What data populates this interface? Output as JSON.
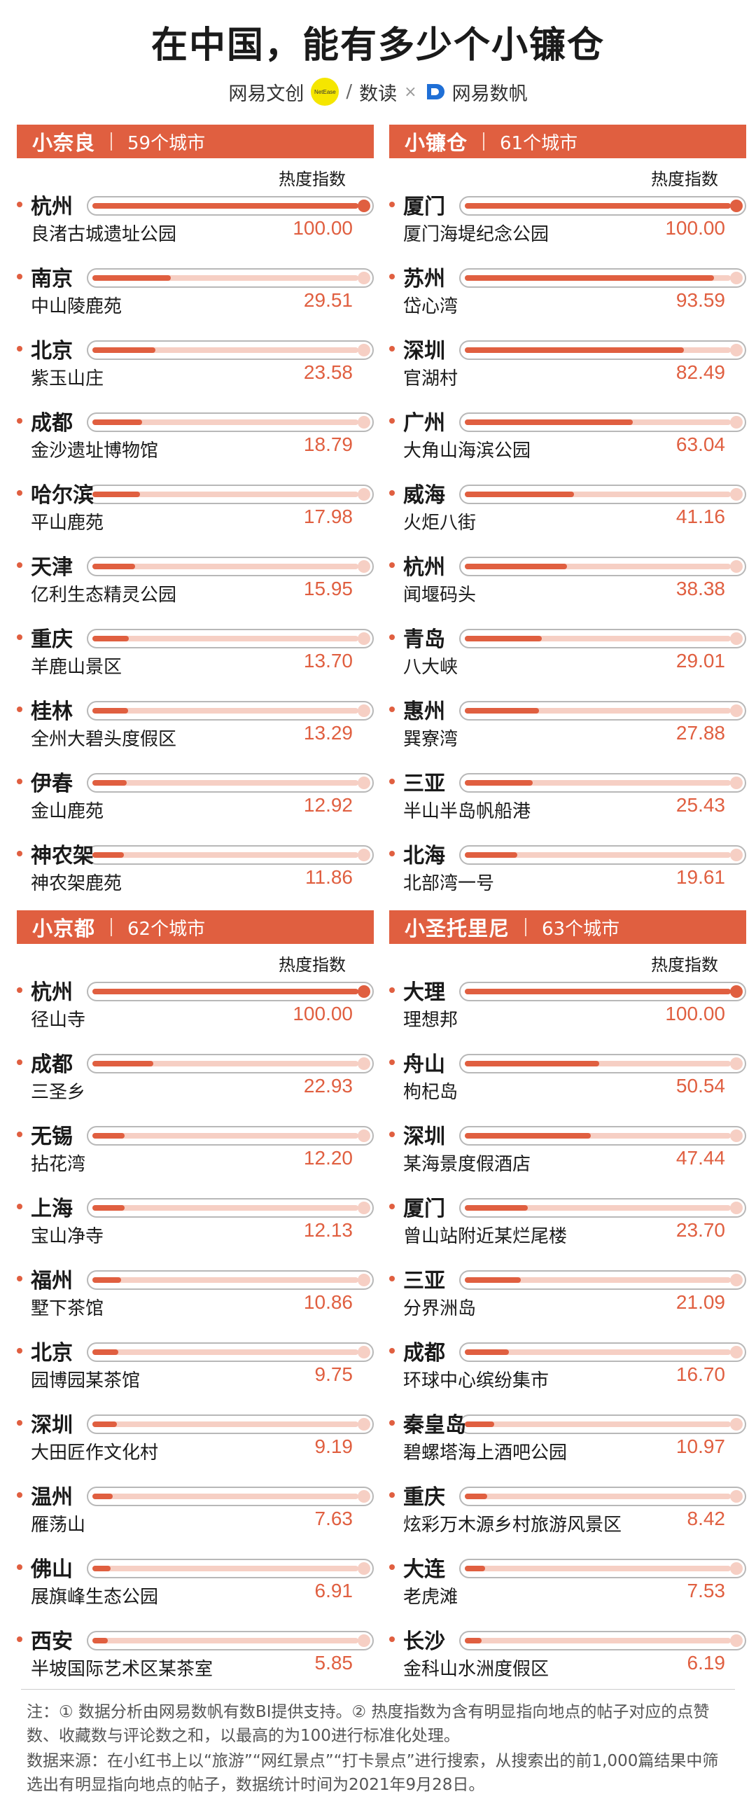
{
  "title": "在中国，能有多少个小镰仓",
  "logos": {
    "wenchuang": "网易文创",
    "badge": "NetEase",
    "slash": "/",
    "shudu": "数读",
    "times": "×",
    "shufan": "网易数帆"
  },
  "hot_label": "热度指数",
  "colors": {
    "accent": "#e05f40",
    "track": "#f6cfc4"
  },
  "panels": [
    {
      "name": "小奈良",
      "count": "59个城市",
      "entries": [
        {
          "city": "杭州",
          "place": "良渚古城遗址公园",
          "value": "100.00"
        },
        {
          "city": "南京",
          "place": "中山陵鹿苑",
          "value": "29.51"
        },
        {
          "city": "北京",
          "place": "紫玉山庄",
          "value": "23.58"
        },
        {
          "city": "成都",
          "place": "金沙遗址博物馆",
          "value": "18.79"
        },
        {
          "city": "哈尔滨",
          "place": "平山鹿苑",
          "value": "17.98"
        },
        {
          "city": "天津",
          "place": "亿利生态精灵公园",
          "value": "15.95"
        },
        {
          "city": "重庆",
          "place": "羊鹿山景区",
          "value": "13.70"
        },
        {
          "city": "桂林",
          "place": "全州大碧头度假区",
          "value": "13.29"
        },
        {
          "city": "伊春",
          "place": "金山鹿苑",
          "value": "12.92"
        },
        {
          "city": "神农架",
          "place": "神农架鹿苑",
          "value": "11.86"
        }
      ]
    },
    {
      "name": "小镰仓",
      "count": "61个城市",
      "entries": [
        {
          "city": "厦门",
          "place": "厦门海堤纪念公园",
          "value": "100.00"
        },
        {
          "city": "苏州",
          "place": "岱心湾",
          "value": "93.59"
        },
        {
          "city": "深圳",
          "place": "官湖村",
          "value": "82.49"
        },
        {
          "city": "广州",
          "place": "大角山海滨公园",
          "value": "63.04"
        },
        {
          "city": "威海",
          "place": "火炬八街",
          "value": "41.16"
        },
        {
          "city": "杭州",
          "place": "闻堰码头",
          "value": "38.38"
        },
        {
          "city": "青岛",
          "place": "八大峡",
          "value": "29.01"
        },
        {
          "city": "惠州",
          "place": "巽寮湾",
          "value": "27.88"
        },
        {
          "city": "三亚",
          "place": "半山半岛帆船港",
          "value": "25.43"
        },
        {
          "city": "北海",
          "place": "北部湾一号",
          "value": "19.61"
        }
      ]
    },
    {
      "name": "小京都",
      "count": "62个城市",
      "entries": [
        {
          "city": "杭州",
          "place": "径山寺",
          "value": "100.00"
        },
        {
          "city": "成都",
          "place": "三圣乡",
          "value": "22.93"
        },
        {
          "city": "无锡",
          "place": "拈花湾",
          "value": "12.20"
        },
        {
          "city": "上海",
          "place": "宝山净寺",
          "value": "12.13"
        },
        {
          "city": "福州",
          "place": "墅下茶馆",
          "value": "10.86"
        },
        {
          "city": "北京",
          "place": "园博园某茶馆",
          "value": "9.75"
        },
        {
          "city": "深圳",
          "place": "大田匠作文化村",
          "value": "9.19"
        },
        {
          "city": "温州",
          "place": "雁荡山",
          "value": "7.63"
        },
        {
          "city": "佛山",
          "place": "展旗峰生态公园",
          "value": "6.91"
        },
        {
          "city": "西安",
          "place": "半坡国际艺术区某茶室",
          "value": "5.85"
        }
      ]
    },
    {
      "name": "小圣托里尼",
      "count": "63个城市",
      "entries": [
        {
          "city": "大理",
          "place": "理想邦",
          "value": "100.00"
        },
        {
          "city": "舟山",
          "place": "枸杞岛",
          "value": "50.54"
        },
        {
          "city": "深圳",
          "place": "某海景度假酒店",
          "value": "47.44"
        },
        {
          "city": "厦门",
          "place": "曾山站附近某烂尾楼",
          "value": "23.70"
        },
        {
          "city": "三亚",
          "place": "分界洲岛",
          "value": "21.09"
        },
        {
          "city": "成都",
          "place": "环球中心缤纷集市",
          "value": "16.70"
        },
        {
          "city": "秦皇岛",
          "place": "碧螺塔海上酒吧公园",
          "value": "10.97"
        },
        {
          "city": "重庆",
          "place": "炫彩万木源乡村旅游风景区",
          "value": "8.42"
        },
        {
          "city": "大连",
          "place": "老虎滩",
          "value": "7.53"
        },
        {
          "city": "长沙",
          "place": "金科山水洲度假区",
          "value": "6.19"
        }
      ]
    }
  ],
  "chart_data": [
    {
      "type": "bar",
      "title": "小奈良",
      "ylabel": "热度指数",
      "ylim": [
        0,
        100
      ],
      "categories": [
        "杭州 良渚古城遗址公园",
        "南京 中山陵鹿苑",
        "北京 紫玉山庄",
        "成都 金沙遗址博物馆",
        "哈尔滨 平山鹿苑",
        "天津 亿利生态精灵公园",
        "重庆 羊鹿山景区",
        "桂林 全州大碧头度假区",
        "伊春 金山鹿苑",
        "神农架 神农架鹿苑"
      ],
      "values": [
        100.0,
        29.51,
        23.58,
        18.79,
        17.98,
        15.95,
        13.7,
        13.29,
        12.92,
        11.86
      ]
    },
    {
      "type": "bar",
      "title": "小镰仓",
      "ylabel": "热度指数",
      "ylim": [
        0,
        100
      ],
      "categories": [
        "厦门 厦门海堤纪念公园",
        "苏州 岱心湾",
        "深圳 官湖村",
        "广州 大角山海滨公园",
        "威海 火炬八街",
        "杭州 闻堰码头",
        "青岛 八大峡",
        "惠州 巽寮湾",
        "三亚 半山半岛帆船港",
        "北海 北部湾一号"
      ],
      "values": [
        100.0,
        93.59,
        82.49,
        63.04,
        41.16,
        38.38,
        29.01,
        27.88,
        25.43,
        19.61
      ]
    },
    {
      "type": "bar",
      "title": "小京都",
      "ylabel": "热度指数",
      "ylim": [
        0,
        100
      ],
      "categories": [
        "杭州 径山寺",
        "成都 三圣乡",
        "无锡 拈花湾",
        "上海 宝山净寺",
        "福州 墅下茶馆",
        "北京 园博园某茶馆",
        "深圳 大田匠作文化村",
        "温州 雁荡山",
        "佛山 展旗峰生态公园",
        "西安 半坡国际艺术区某茶室"
      ],
      "values": [
        100.0,
        22.93,
        12.2,
        12.13,
        10.86,
        9.75,
        9.19,
        7.63,
        6.91,
        5.85
      ]
    },
    {
      "type": "bar",
      "title": "小圣托里尼",
      "ylabel": "热度指数",
      "ylim": [
        0,
        100
      ],
      "categories": [
        "大理 理想邦",
        "舟山 枸杞岛",
        "深圳 某海景度假酒店",
        "厦门 曾山站附近某烂尾楼",
        "三亚 分界洲岛",
        "成都 环球中心缤纷集市",
        "秦皇岛 碧螺塔海上酒吧公园",
        "重庆 炫彩万木源乡村旅游风景区",
        "大连 老虎滩",
        "长沙 金科山水洲度假区"
      ],
      "values": [
        100.0,
        50.54,
        47.44,
        23.7,
        21.09,
        16.7,
        10.97,
        8.42,
        7.53,
        6.19
      ]
    }
  ],
  "notes": {
    "note1": "注：① 数据分析由网易数帆有数BI提供支持。② 热度指数为含有明显指向地点的帖子对应的点赞数、收藏数与评论数之和，以最高的为100进行标准化处理。",
    "note2": "数据来源：在小红书上以“旅游”“网红景点”“打卡景点”进行搜索，从搜索出的前1,000篇结果中筛选出有明显指向地点的帖子，数据统计时间为2021年9月28日。"
  }
}
